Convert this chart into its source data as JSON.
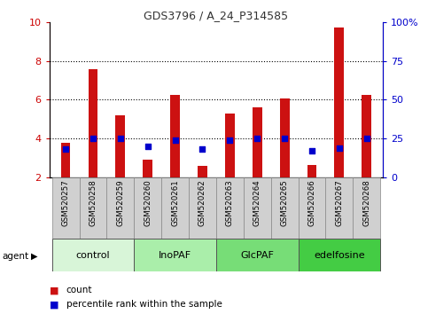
{
  "title": "GDS3796 / A_24_P314585",
  "samples": [
    "GSM520257",
    "GSM520258",
    "GSM520259",
    "GSM520260",
    "GSM520261",
    "GSM520262",
    "GSM520263",
    "GSM520264",
    "GSM520265",
    "GSM520266",
    "GSM520267",
    "GSM520268"
  ],
  "count_values": [
    3.8,
    7.55,
    5.2,
    2.9,
    6.25,
    2.6,
    5.3,
    5.6,
    6.05,
    2.65,
    9.7,
    6.25
  ],
  "percentile_values": [
    18,
    25,
    25,
    20,
    24,
    18,
    24,
    25,
    25,
    17,
    19,
    25
  ],
  "groups": [
    {
      "label": "control",
      "start": 0,
      "end": 3,
      "color": "#d8f5d8"
    },
    {
      "label": "InoPAF",
      "start": 3,
      "end": 6,
      "color": "#aaeeaa"
    },
    {
      "label": "GlcPAF",
      "start": 6,
      "end": 9,
      "color": "#77dd77"
    },
    {
      "label": "edelfosine",
      "start": 9,
      "end": 12,
      "color": "#44cc44"
    }
  ],
  "ylim_left": [
    2,
    10
  ],
  "ylim_right": [
    0,
    100
  ],
  "yticks_left": [
    2,
    4,
    6,
    8,
    10
  ],
  "ytick_labels_left": [
    "2",
    "4",
    "6",
    "8",
    "10"
  ],
  "yticks_right": [
    0,
    25,
    50,
    75,
    100
  ],
  "ytick_labels_right": [
    "0",
    "25",
    "50",
    "75",
    "100%"
  ],
  "bar_color": "#cc1111",
  "percentile_color": "#0000cc",
  "left_tick_color": "#cc0000",
  "right_tick_color": "#0000cc",
  "agent_label": "agent",
  "legend_count": "count",
  "legend_percentile": "percentile rank within the sample",
  "sample_box_color": "#d0d0d0",
  "bar_width": 0.35
}
